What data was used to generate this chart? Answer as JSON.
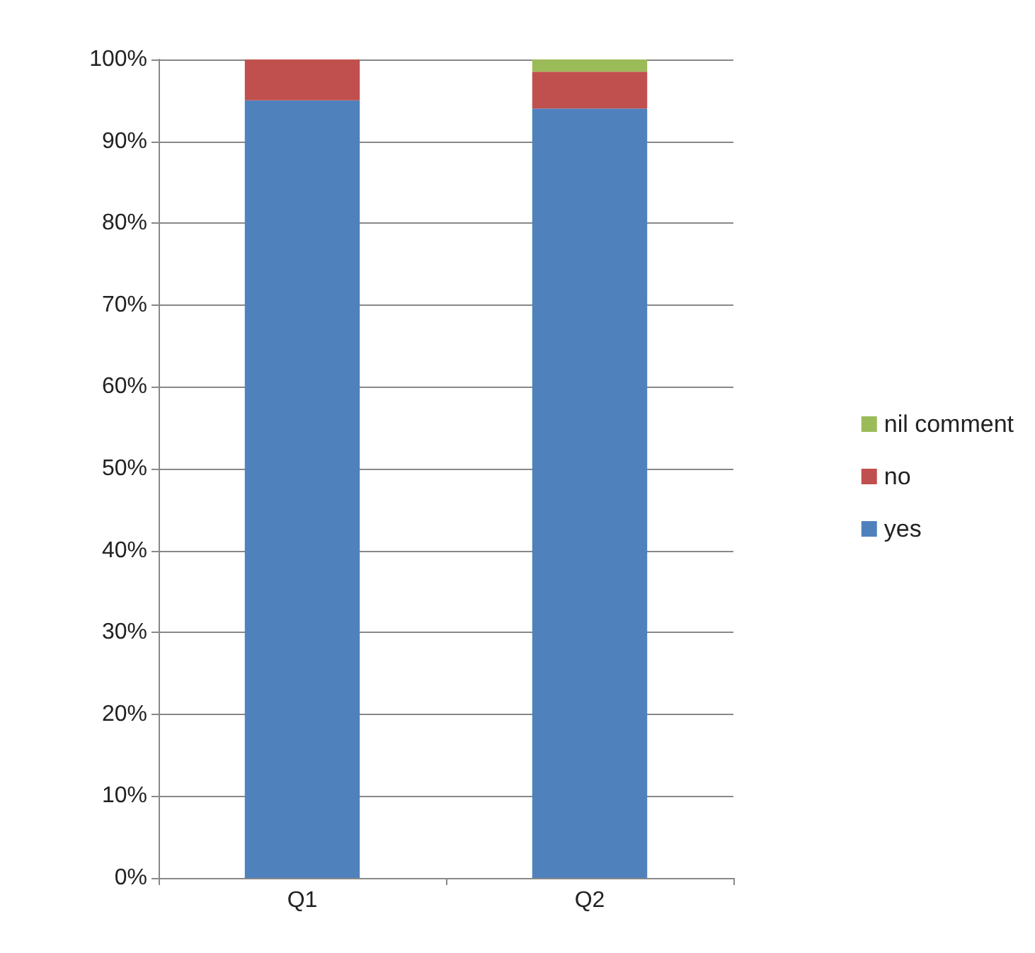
{
  "chart_data": {
    "type": "bar",
    "stacked": true,
    "categories": [
      "Q1",
      "Q2"
    ],
    "series": [
      {
        "name": "yes",
        "color": "#4f81bd",
        "values": [
          95,
          94
        ]
      },
      {
        "name": "no",
        "color": "#c0504d",
        "values": [
          5,
          4.5
        ]
      },
      {
        "name": "nil comment",
        "color": "#9bbb59",
        "values": [
          0,
          1.5
        ]
      }
    ],
    "ylim": [
      0,
      100
    ],
    "yticks": [
      {
        "value": 0,
        "label": "0%"
      },
      {
        "value": 10,
        "label": "10%"
      },
      {
        "value": 20,
        "label": "20%"
      },
      {
        "value": 30,
        "label": "30%"
      },
      {
        "value": 40,
        "label": "40%"
      },
      {
        "value": 50,
        "label": "50%"
      },
      {
        "value": 60,
        "label": "60%"
      },
      {
        "value": 70,
        "label": "70%"
      },
      {
        "value": 80,
        "label": "80%"
      },
      {
        "value": 90,
        "label": "90%"
      },
      {
        "value": 100,
        "label": "100%"
      }
    ],
    "grid": "y",
    "legend": "right"
  }
}
